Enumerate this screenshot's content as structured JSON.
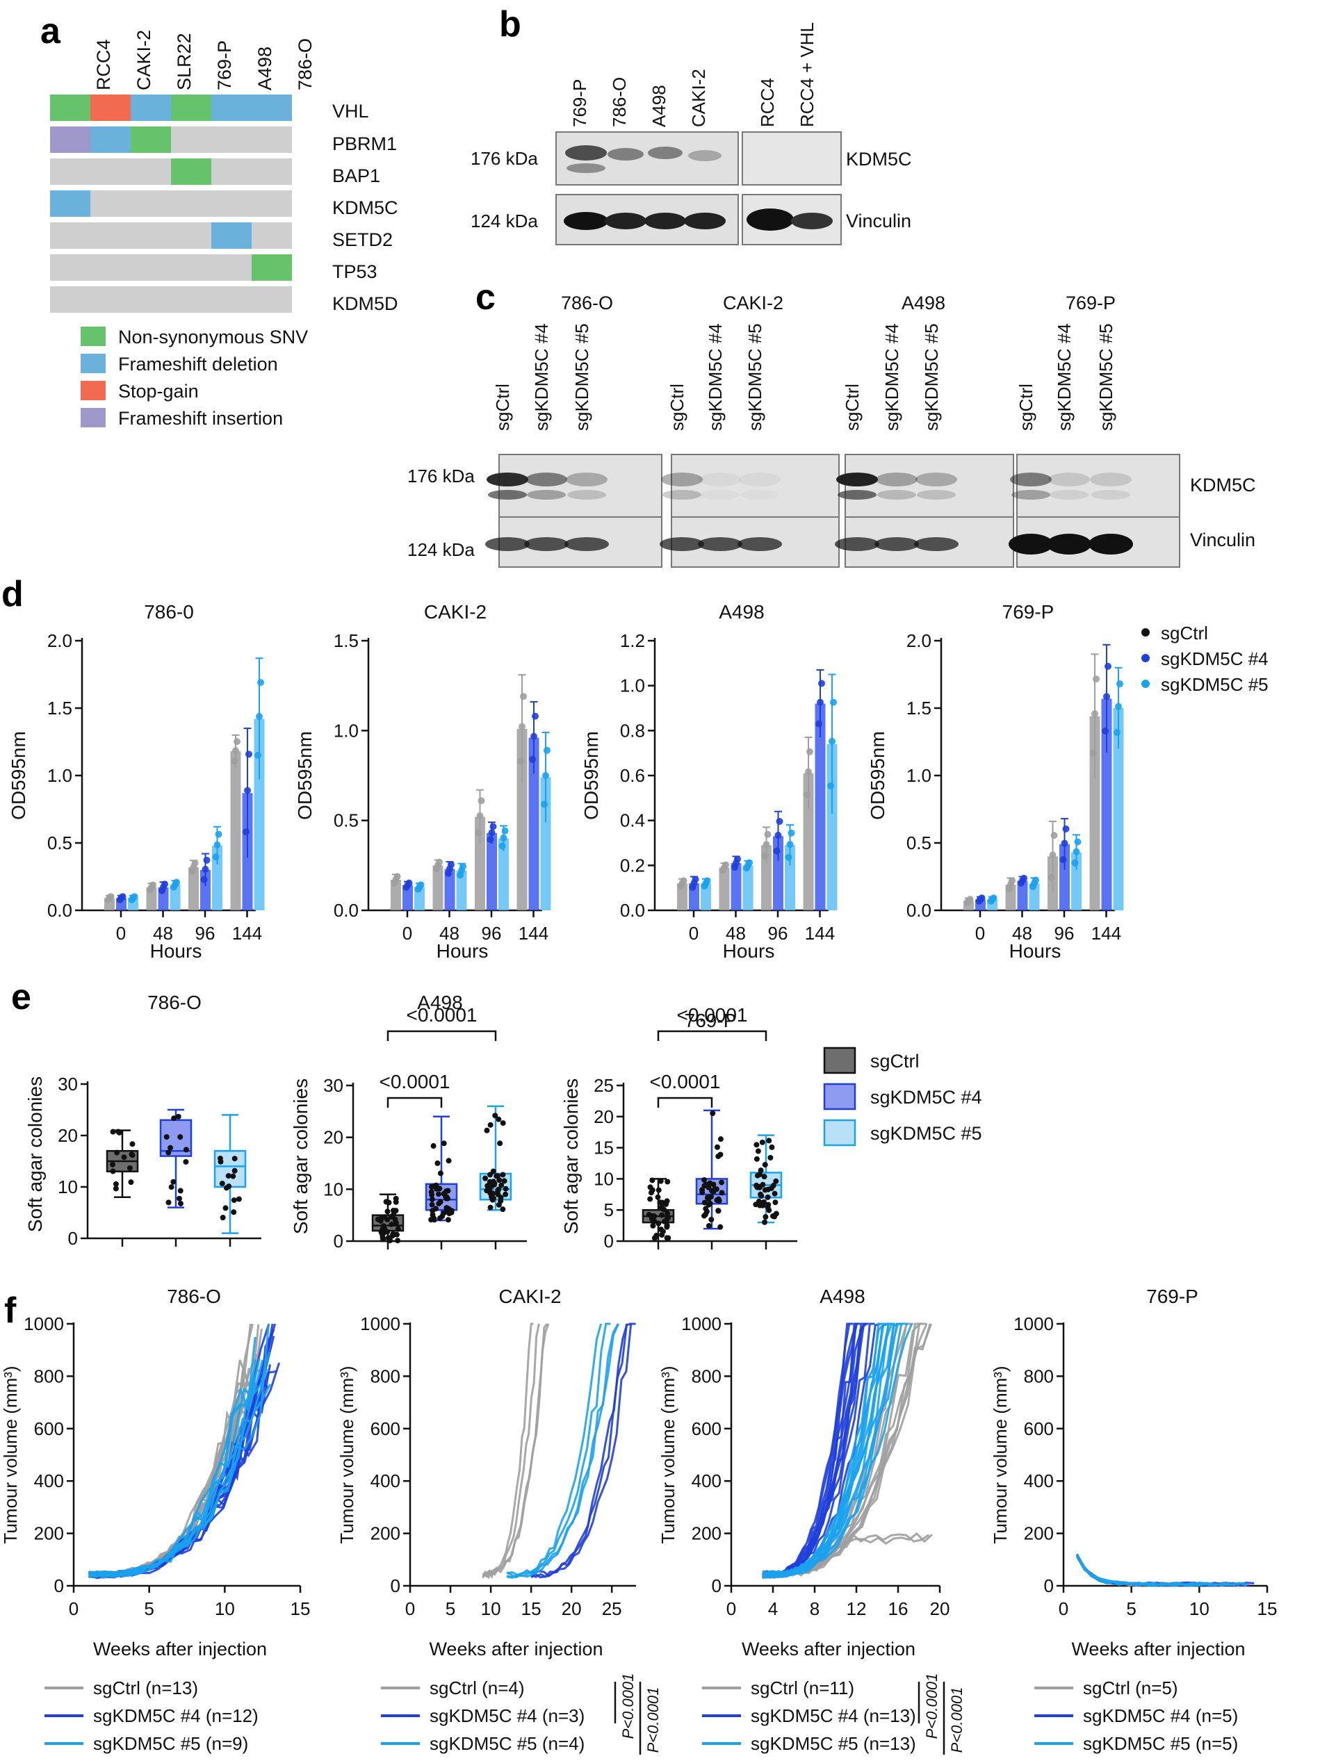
{
  "colors": {
    "sgCtrl": "#9e9e9e",
    "sgCtrl_dot": "#111111",
    "kdm4": "#1f3fdc",
    "kdm4_bar": "#3d5cf2",
    "kdm5": "#1aa2ee",
    "kdm5_bar": "#5cc0f5",
    "nonsyn": "#66c36b",
    "fsdel": "#6ab2dc",
    "stopgain": "#f26b50",
    "fsins": "#9f98cb",
    "wt": "#cfcfcf"
  },
  "panels": {
    "a": "a",
    "b": "b",
    "c": "c",
    "d": "d",
    "e": "e",
    "f": "f"
  },
  "panel_a": {
    "cell_lines": [
      "RCC4",
      "CAKI-2",
      "SLR22",
      "769-P",
      "A498",
      "786-O"
    ],
    "genes": [
      "VHL",
      "PBRM1",
      "BAP1",
      "KDM5C",
      "SETD2",
      "TP53",
      "KDM5D"
    ],
    "grid": [
      [
        "nonsyn",
        "stopgain",
        "fsdel",
        "nonsyn",
        "fsdel",
        "fsdel"
      ],
      [
        "fsins",
        "fsdel",
        "nonsyn",
        "wt",
        "wt",
        "wt"
      ],
      [
        "wt",
        "wt",
        "wt",
        "nonsyn",
        "wt",
        "wt"
      ],
      [
        "fsdel",
        "wt",
        "wt",
        "wt",
        "wt",
        "wt"
      ],
      [
        "wt",
        "wt",
        "wt",
        "wt",
        "fsdel",
        "wt"
      ],
      [
        "wt",
        "wt",
        "wt",
        "wt",
        "wt",
        "nonsyn"
      ],
      [
        "wt",
        "wt",
        "wt",
        "wt",
        "wt",
        "wt"
      ]
    ],
    "legend": [
      {
        "key": "nonsyn",
        "label": "Non-synonymous SNV"
      },
      {
        "key": "fsdel",
        "label": "Frameshift deletion"
      },
      {
        "key": "stopgain",
        "label": "Stop-gain"
      },
      {
        "key": "fsins",
        "label": "Frameshift insertion"
      }
    ]
  },
  "panel_b": {
    "lanes_left": [
      "769-P",
      "786-O",
      "A498",
      "CAKI-2"
    ],
    "lanes_right": [
      "RCC4",
      "RCC4 + VHL"
    ],
    "markers": [
      "176 kDa",
      "124 kDa"
    ],
    "proteins": [
      "KDM5C",
      "Vinculin"
    ]
  },
  "panel_c": {
    "groups": [
      "786-O",
      "CAKI-2",
      "A498",
      "769-P"
    ],
    "lanes": [
      "sgCtrl",
      "sgKDM5C #4",
      "sgKDM5C #5"
    ],
    "markers": [
      "176 kDa",
      "124 kDa"
    ],
    "proteins": [
      "KDM5C",
      "Vinculin"
    ]
  },
  "panel_d": {
    "chart_data": [
      {
        "type": "bar",
        "title": "786-0",
        "xlabel": "Hours",
        "ylabel": "OD595nm",
        "categories": [
          "0",
          "48",
          "96",
          "144"
        ],
        "ylim": [
          0,
          2.0
        ],
        "yticks": [
          "0.0",
          "0.5",
          "1.0",
          "1.5",
          "2.0"
        ],
        "series": [
          {
            "name": "sgCtrl",
            "values": [
              0.09,
              0.17,
              0.32,
              1.18
            ],
            "errors": [
              0.02,
              0.03,
              0.05,
              0.12
            ]
          },
          {
            "name": "sgKDM5C #4",
            "values": [
              0.09,
              0.17,
              0.3,
              0.87
            ],
            "errors": [
              0.02,
              0.04,
              0.12,
              0.48
            ]
          },
          {
            "name": "sgKDM5C #5",
            "values": [
              0.09,
              0.19,
              0.48,
              1.42
            ],
            "errors": [
              0.02,
              0.03,
              0.14,
              0.45
            ]
          }
        ]
      },
      {
        "type": "bar",
        "title": "CAKI-2",
        "xlabel": "Hours",
        "ylabel": "OD595nm",
        "categories": [
          "0",
          "48",
          "96",
          "144"
        ],
        "ylim": [
          0,
          1.5
        ],
        "yticks": [
          "0.0",
          "0.5",
          "1.0",
          "1.5"
        ],
        "series": [
          {
            "name": "sgCtrl",
            "values": [
              0.17,
              0.25,
              0.52,
              1.01
            ],
            "errors": [
              0.03,
              0.03,
              0.15,
              0.3
            ]
          },
          {
            "name": "sgKDM5C #4",
            "values": [
              0.14,
              0.23,
              0.43,
              0.96
            ],
            "errors": [
              0.02,
              0.04,
              0.06,
              0.2
            ]
          },
          {
            "name": "sgKDM5C #5",
            "values": [
              0.13,
              0.22,
              0.4,
              0.74
            ],
            "errors": [
              0.02,
              0.04,
              0.07,
              0.25
            ]
          }
        ]
      },
      {
        "type": "bar",
        "title": "A498",
        "xlabel": "Hours",
        "ylabel": "OD595nm",
        "categories": [
          "0",
          "48",
          "96",
          "144"
        ],
        "ylim": [
          0,
          1.2
        ],
        "yticks": [
          "0.0",
          "0.2",
          "0.4",
          "0.6",
          "0.8",
          "1.0",
          "1.2"
        ],
        "series": [
          {
            "name": "sgCtrl",
            "values": [
              0.12,
              0.19,
              0.29,
              0.61
            ],
            "errors": [
              0.02,
              0.02,
              0.08,
              0.16
            ]
          },
          {
            "name": "sgKDM5C #4",
            "values": [
              0.12,
              0.21,
              0.33,
              0.92
            ],
            "errors": [
              0.03,
              0.03,
              0.11,
              0.15
            ]
          },
          {
            "name": "sgKDM5C #5",
            "values": [
              0.12,
              0.2,
              0.29,
              0.74
            ],
            "errors": [
              0.02,
              0.02,
              0.09,
              0.31
            ]
          }
        ]
      },
      {
        "type": "bar",
        "title": "769-P",
        "xlabel": "Hours",
        "ylabel": "OD595nm",
        "categories": [
          "0",
          "48",
          "96",
          "144"
        ],
        "ylim": [
          0,
          2.0
        ],
        "yticks": [
          "0.0",
          "0.5",
          "1.0",
          "1.5",
          "2.0"
        ],
        "series": [
          {
            "name": "sgCtrl",
            "values": [
              0.07,
              0.19,
              0.4,
              1.44
            ],
            "errors": [
              0.02,
              0.05,
              0.26,
              0.46
            ]
          },
          {
            "name": "sgKDM5C #4",
            "values": [
              0.08,
              0.22,
              0.49,
              1.57
            ],
            "errors": [
              0.02,
              0.03,
              0.19,
              0.4
            ]
          },
          {
            "name": "sgKDM5C #5",
            "values": [
              0.08,
              0.2,
              0.43,
              1.5
            ],
            "errors": [
              0.02,
              0.04,
              0.13,
              0.3
            ]
          }
        ]
      }
    ],
    "legend": [
      "sgCtrl",
      "sgKDM5C #4",
      "sgKDM5C #5"
    ]
  },
  "panel_e": {
    "chart_data": [
      {
        "type": "box",
        "title": "786-O",
        "ylabel": "Soft agar colonies",
        "ylim": [
          0,
          30
        ],
        "yticks": [
          "0",
          "10",
          "20",
          "30"
        ],
        "groups": [
          {
            "name": "sgCtrl",
            "min": 8,
            "q1": 13,
            "median": 15,
            "q3": 17,
            "max": 21
          },
          {
            "name": "sgKDM5C #4",
            "min": 6,
            "q1": 16,
            "median": 17,
            "q3": 23,
            "max": 25
          },
          {
            "name": "sgKDM5C #5",
            "min": 1,
            "q1": 10,
            "median": 14,
            "q3": 17,
            "max": 24
          }
        ],
        "annotations": []
      },
      {
        "type": "box",
        "title": "A498",
        "ylabel": "Soft agar colonies",
        "ylim": [
          0,
          30
        ],
        "yticks": [
          "0",
          "10",
          "20",
          "30"
        ],
        "groups": [
          {
            "name": "sgCtrl",
            "min": 0,
            "q1": 2,
            "median": 3,
            "q3": 5,
            "max": 9
          },
          {
            "name": "sgKDM5C #4",
            "min": 4,
            "q1": 6,
            "median": 8,
            "q3": 11,
            "max": 24
          },
          {
            "name": "sgKDM5C #5",
            "min": 6,
            "q1": 8,
            "median": 10,
            "q3": 13,
            "max": 26
          }
        ],
        "annotations": [
          {
            "from": 0,
            "to": 1,
            "text": "<0.0001"
          },
          {
            "from": 0,
            "to": 2,
            "text": "<0.0001"
          }
        ]
      },
      {
        "type": "box",
        "title": "769-P",
        "ylabel": "Soft agar colonies",
        "ylim": [
          0,
          25
        ],
        "yticks": [
          "0",
          "5",
          "10",
          "15",
          "20",
          "25"
        ],
        "groups": [
          {
            "name": "sgCtrl",
            "min": 0,
            "q1": 3,
            "median": 4,
            "q3": 5,
            "max": 10
          },
          {
            "name": "sgKDM5C #4",
            "min": 2,
            "q1": 6,
            "median": 7.5,
            "q3": 10,
            "max": 21
          },
          {
            "name": "sgKDM5C #5",
            "min": 3,
            "q1": 7,
            "median": 9,
            "q3": 11,
            "max": 17
          }
        ],
        "annotations": [
          {
            "from": 0,
            "to": 1,
            "text": "<0.0001"
          },
          {
            "from": 0,
            "to": 2,
            "text": "<0.0001"
          }
        ]
      }
    ],
    "legend": [
      "sgCtrl",
      "sgKDM5C #4",
      "sgKDM5C #5"
    ]
  },
  "panel_f": {
    "chart_data": [
      {
        "type": "line",
        "title": "786-O",
        "xlabel": "Weeks after injection",
        "ylabel": "Tumour volume (mm³)",
        "xlim": [
          0,
          15
        ],
        "ylim": [
          0,
          1000
        ],
        "xticks": [
          "0",
          "5",
          "10",
          "15"
        ],
        "yticks": [
          "0",
          "200",
          "400",
          "600",
          "800",
          "1000"
        ],
        "legend": [
          "sgCtrl (n=13)",
          "sgKDM5C #4 (n=12)",
          "sgKDM5C #5 (n=9)"
        ],
        "p_values": [],
        "onset_weeks": [
          1,
          1,
          1
        ],
        "end_weeks": [
          12,
          13.2,
          12.5
        ],
        "n": [
          13,
          12,
          9
        ]
      },
      {
        "type": "line",
        "title": "CAKI-2",
        "xlabel": "Weeks after injection",
        "ylabel": "Tumour volume (mm³)",
        "xlim": [
          0,
          28
        ],
        "ylim": [
          0,
          1000
        ],
        "xticks": [
          "0",
          "5",
          "10",
          "15",
          "20",
          "25"
        ],
        "yticks": [
          "0",
          "200",
          "400",
          "600",
          "800",
          "1000"
        ],
        "legend": [
          "sgCtrl (n=4)",
          "sgKDM5C #4 (n=3)",
          "sgKDM5C #5 (n=4)"
        ],
        "p_values": [
          "P<0.0001",
          "P<0.0001"
        ],
        "onset_weeks": [
          9,
          15,
          12
        ],
        "end_weeks": [
          16,
          27,
          25
        ],
        "n": [
          4,
          3,
          4
        ]
      },
      {
        "type": "line",
        "title": "A498",
        "xlabel": "Weeks after injection",
        "ylabel": "Tumour volume (mm³)",
        "xlim": [
          0,
          20
        ],
        "ylim": [
          0,
          1000
        ],
        "xticks": [
          "0",
          "4",
          "8",
          "12",
          "16",
          "20"
        ],
        "yticks": [
          "0",
          "200",
          "400",
          "600",
          "800",
          "1000"
        ],
        "legend": [
          "sgCtrl (n=11)",
          "sgKDM5C #4 (n=13)",
          "sgKDM5C #5 (n=13)"
        ],
        "p_values": [
          "P<0.0001",
          "P<0.0001"
        ],
        "onset_weeks": [
          3,
          3,
          3
        ],
        "end_weeks": [
          18,
          13,
          16
        ],
        "n": [
          11,
          13,
          13
        ]
      },
      {
        "type": "line",
        "title": "769-P",
        "xlabel": "Weeks after injection",
        "ylabel": "Tumour volume (mm³)",
        "xlim": [
          0,
          15
        ],
        "ylim": [
          0,
          1000
        ],
        "xticks": [
          "0",
          "5",
          "10",
          "15"
        ],
        "yticks": [
          "0",
          "200",
          "400",
          "600",
          "800",
          "1000"
        ],
        "legend": [
          "sgCtrl (n=5)",
          "sgKDM5C #4 (n=5)",
          "sgKDM5C #5 (n=5)"
        ],
        "p_values": [],
        "onset_weeks": [
          1,
          1,
          1
        ],
        "end_weeks": [
          13,
          13,
          13
        ],
        "n": [
          5,
          5,
          5
        ]
      }
    ]
  }
}
